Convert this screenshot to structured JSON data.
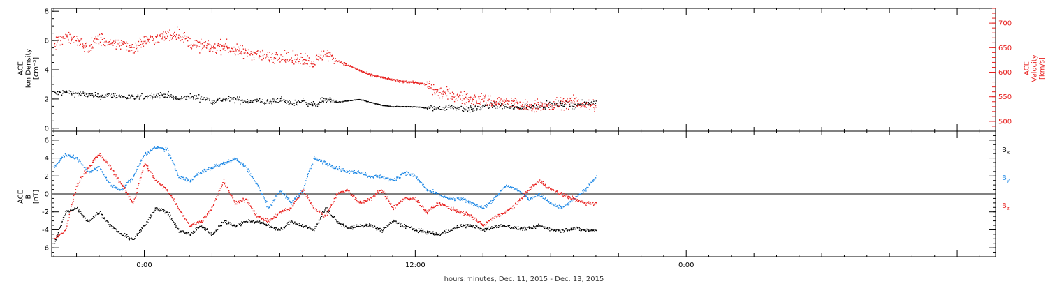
{
  "colors": {
    "black": "#000000",
    "red": "#e8201e",
    "blue": "#1e88e5"
  },
  "xlabel": "hours:minutes, Dec. 11, 2015 - Dec. 13, 2015",
  "x_axis": {
    "ticks": [
      {
        "t": 0,
        "label": "0:00"
      },
      {
        "t": 12,
        "label": "12:00"
      },
      {
        "t": 24,
        "label": "0:00"
      }
    ]
  },
  "chart_data": [
    {
      "type": "scatter",
      "panel": "density-velocity",
      "xlim": [
        -4.1,
        37.7
      ],
      "ylabel_lines": [
        "ACE",
        "Ion Density",
        "[cm⁻³]"
      ],
      "ylim": [
        -0.2,
        8.2
      ],
      "yticks": [
        0,
        2,
        4,
        6,
        8
      ],
      "ylabel_right_lines": [
        "ACE",
        "Velocity",
        "[km/s]"
      ],
      "ylim_right": [
        480,
        730
      ],
      "yticks_right": [
        500,
        550,
        600,
        650,
        700
      ],
      "series": [
        {
          "axis": "left",
          "color": "black",
          "x": [
            -4.0,
            -3.5,
            -3.0,
            -2.5,
            -2.0,
            -1.5,
            -1.0,
            -0.5,
            0.0,
            0.5,
            1.0,
            1.5,
            2.0,
            2.5,
            3.0,
            3.5,
            4.0,
            4.5,
            5.0,
            5.5,
            6.0,
            6.5,
            7.0,
            7.5,
            8.0,
            8.5,
            9.0,
            9.5,
            10.0,
            10.5,
            11.0,
            11.5,
            12.0,
            12.5,
            13.0,
            13.5,
            14.0,
            14.5,
            15.0,
            15.5,
            16.0,
            16.5,
            17.0,
            17.5,
            18.0,
            18.5,
            19.0,
            19.5,
            20.0
          ],
          "y": [
            2.4,
            2.5,
            2.4,
            2.3,
            2.2,
            2.3,
            2.2,
            2.1,
            2.2,
            2.3,
            2.3,
            2.0,
            2.2,
            2.1,
            1.9,
            2.0,
            2.0,
            1.9,
            1.9,
            1.8,
            2.0,
            1.7,
            1.9,
            1.6,
            2.0,
            1.8,
            1.9,
            2.0,
            1.8,
            1.6,
            1.5,
            1.5,
            1.5,
            1.4,
            1.4,
            1.5,
            1.4,
            1.3,
            1.5,
            1.6,
            1.5,
            1.4,
            1.5,
            1.6,
            1.6,
            1.7,
            1.6,
            1.7,
            1.8
          ]
        },
        {
          "axis": "right",
          "color": "red",
          "x": [
            -4.0,
            -3.5,
            -3.0,
            -2.5,
            -2.0,
            -1.5,
            -1.0,
            -0.5,
            0.0,
            0.5,
            1.0,
            1.5,
            2.0,
            2.5,
            3.0,
            3.5,
            4.0,
            4.5,
            5.0,
            5.5,
            6.0,
            6.5,
            7.0,
            7.5,
            8.0,
            8.5,
            9.0,
            9.5,
            10.0,
            10.5,
            11.0,
            11.5,
            12.0,
            12.5,
            13.0,
            13.5,
            14.0,
            14.5,
            15.0,
            15.5,
            16.0,
            16.5,
            17.0,
            17.5,
            18.0,
            18.5,
            19.0,
            19.5,
            20.0
          ],
          "y": [
            660,
            675,
            665,
            650,
            670,
            655,
            660,
            650,
            665,
            670,
            675,
            680,
            660,
            655,
            650,
            655,
            645,
            640,
            640,
            630,
            635,
            625,
            630,
            620,
            640,
            625,
            615,
            605,
            595,
            590,
            585,
            582,
            580,
            575,
            560,
            555,
            550,
            545,
            545,
            540,
            540,
            535,
            530,
            535,
            530,
            540,
            540,
            535,
            532
          ]
        }
      ]
    },
    {
      "type": "scatter",
      "panel": "magnetic-field",
      "xlim": [
        -4.1,
        37.7
      ],
      "ylabel_lines": [
        "ACE",
        "B",
        "[nT]"
      ],
      "ylim": [
        -7,
        7
      ],
      "yticks": [
        -6,
        -4,
        -2,
        0,
        2,
        4,
        6
      ],
      "zero_line": true,
      "series": [
        {
          "name": "Bx",
          "color": "black",
          "x": [
            -4.0,
            -3.5,
            -3.0,
            -2.5,
            -2.0,
            -1.5,
            -1.0,
            -0.5,
            0.0,
            0.5,
            1.0,
            1.5,
            2.0,
            2.5,
            3.0,
            3.5,
            4.0,
            4.5,
            5.0,
            5.5,
            6.0,
            6.5,
            7.0,
            7.5,
            8.0,
            8.5,
            9.0,
            9.5,
            10.0,
            10.5,
            11.0,
            11.5,
            12.0,
            12.5,
            13.0,
            13.5,
            14.0,
            14.5,
            15.0,
            15.5,
            16.0,
            16.5,
            17.0,
            17.5,
            18.0,
            18.5,
            19.0,
            19.5,
            20.0
          ],
          "y": [
            -5.5,
            -2.0,
            -1.5,
            -3.0,
            -2.0,
            -3.5,
            -4.5,
            -5.0,
            -3.5,
            -1.5,
            -2.0,
            -4.0,
            -4.5,
            -3.5,
            -4.5,
            -3.0,
            -3.5,
            -3.0,
            -3.0,
            -3.5,
            -4.0,
            -3.0,
            -3.5,
            -4.0,
            -1.5,
            -3.0,
            -3.8,
            -3.5,
            -3.5,
            -4.0,
            -3.0,
            -3.5,
            -4.0,
            -4.2,
            -4.5,
            -4.0,
            -3.5,
            -3.5,
            -4.0,
            -3.6,
            -3.5,
            -3.8,
            -3.8,
            -3.5,
            -3.9,
            -4.0,
            -3.8,
            -4.0,
            -4.0
          ]
        },
        {
          "name": "By",
          "color": "blue",
          "x": [
            -4.0,
            -3.5,
            -3.0,
            -2.5,
            -2.0,
            -1.5,
            -1.0,
            -0.5,
            0.0,
            0.5,
            1.0,
            1.5,
            2.0,
            2.5,
            3.0,
            3.5,
            4.0,
            4.5,
            5.0,
            5.5,
            6.0,
            6.5,
            7.0,
            7.5,
            8.0,
            8.5,
            9.0,
            9.5,
            10.0,
            10.5,
            11.0,
            11.5,
            12.0,
            12.5,
            13.0,
            13.5,
            14.0,
            14.5,
            15.0,
            15.5,
            16.0,
            16.5,
            17.0,
            17.5,
            18.0,
            18.5,
            19.0,
            19.5,
            20.0
          ],
          "y": [
            3.0,
            4.5,
            4.0,
            2.5,
            3.0,
            1.0,
            0.5,
            2.0,
            4.5,
            5.2,
            5.0,
            2.0,
            1.5,
            2.5,
            3.0,
            3.5,
            4.0,
            3.0,
            1.0,
            -1.5,
            0.5,
            -1.0,
            0.5,
            4.0,
            3.5,
            3.0,
            2.5,
            2.5,
            2.0,
            2.0,
            1.5,
            2.5,
            2.0,
            0.5,
            0.0,
            -0.5,
            -0.5,
            -1.0,
            -1.5,
            -0.5,
            1.0,
            0.5,
            -0.5,
            0.0,
            -1.0,
            -1.5,
            -0.5,
            0.5,
            2.0
          ]
        },
        {
          "name": "Bz",
          "color": "red",
          "x": [
            -4.0,
            -3.5,
            -3.0,
            -2.5,
            -2.0,
            -1.5,
            -1.0,
            -0.5,
            0.0,
            0.5,
            1.0,
            1.5,
            2.0,
            2.5,
            3.0,
            3.5,
            4.0,
            4.5,
            5.0,
            5.5,
            6.0,
            6.5,
            7.0,
            7.5,
            8.0,
            8.5,
            9.0,
            9.5,
            10.0,
            10.5,
            11.0,
            11.5,
            12.0,
            12.5,
            13.0,
            13.5,
            14.0,
            14.5,
            15.0,
            15.5,
            16.0,
            16.5,
            17.0,
            17.5,
            18.0,
            18.5,
            19.0,
            19.5,
            20.0
          ],
          "y": [
            -5.0,
            -4.0,
            1.0,
            3.0,
            4.5,
            3.0,
            1.0,
            -1.0,
            3.5,
            1.5,
            0.5,
            -1.5,
            -3.5,
            -3.0,
            -1.5,
            1.5,
            -1.0,
            -0.5,
            -2.5,
            -3.0,
            -2.0,
            -1.5,
            0.5,
            -1.5,
            -2.5,
            0.0,
            0.5,
            -1.0,
            -0.5,
            0.5,
            -1.5,
            -0.5,
            -0.5,
            -2.0,
            -1.0,
            -1.5,
            -2.0,
            -2.5,
            -3.5,
            -2.5,
            -2.0,
            -1.0,
            0.5,
            1.5,
            0.5,
            0.0,
            -0.5,
            -1.0,
            -1.0
          ]
        }
      ],
      "legend": {
        "placement": "right",
        "entries": [
          {
            "label": "B",
            "sub": "x",
            "color": "black"
          },
          {
            "label": "B",
            "sub": "y",
            "color": "blue"
          },
          {
            "label": "B",
            "sub": "z",
            "color": "red"
          }
        ]
      }
    }
  ]
}
